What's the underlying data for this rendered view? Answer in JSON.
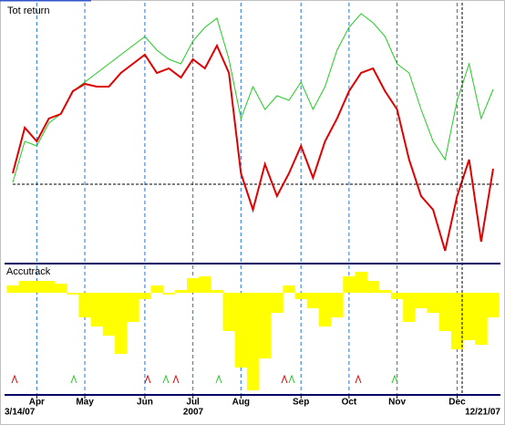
{
  "chart_data": [
    {
      "type": "line",
      "title": "Tot return",
      "categories": [
        "3/14/07",
        null,
        "Apr",
        null,
        null,
        null,
        "May",
        null,
        null,
        null,
        null,
        "Jun",
        null,
        null,
        null,
        "Jul",
        null,
        null,
        null,
        "Aug",
        null,
        null,
        null,
        null,
        "Sep",
        null,
        null,
        null,
        "Oct",
        null,
        null,
        null,
        "Nov",
        null,
        null,
        null,
        null,
        "Dec",
        null,
        null,
        "12/21/07"
      ],
      "x_label": "2007",
      "series": [
        {
          "color": "#e00000",
          "values": [
            6,
            31,
            23.5,
            36,
            38.5,
            51,
            55,
            53.5,
            53.5,
            61,
            66,
            71,
            61,
            63.5,
            58.5,
            68.5,
            63.5,
            76,
            61,
            6,
            -14,
            11,
            -6.5,
            6,
            21,
            3.5,
            23.5,
            36,
            51,
            61,
            63.5,
            51,
            41,
            13.5,
            -6.5,
            -14,
            -36.5,
            -6.5,
            13.5,
            -31.5,
            8.5
          ]
        },
        {
          "color": "#22cc22",
          "values": [
            1,
            23.5,
            21,
            33.5,
            38.5,
            51,
            56,
            61,
            66,
            71,
            76,
            81,
            73.5,
            68.5,
            66,
            78.5,
            86,
            91,
            68.5,
            36,
            53.5,
            41,
            48.5,
            46,
            56,
            41,
            53.5,
            73.5,
            86,
            93.5,
            88.5,
            81,
            66,
            61,
            41,
            23.5,
            13.5,
            46,
            66,
            36,
            52
          ]
        }
      ],
      "ylim": [
        -42,
        100
      ]
    },
    {
      "type": "bar",
      "title": "Accutrack",
      "color": "#ffff00",
      "values": [
        8,
        13,
        13,
        13,
        10,
        -2,
        -27,
        -37,
        -47,
        -67,
        -32,
        -7,
        8,
        -2,
        3,
        16,
        18,
        3,
        -42,
        -82,
        -107,
        -72,
        -22,
        8,
        -7,
        -17,
        -37,
        -27,
        18,
        23,
        13,
        3,
        -7,
        -32,
        -17,
        -22,
        -42,
        -62,
        -52,
        -57,
        -27
      ],
      "ylim": [
        -112,
        30
      ]
    }
  ]
}
